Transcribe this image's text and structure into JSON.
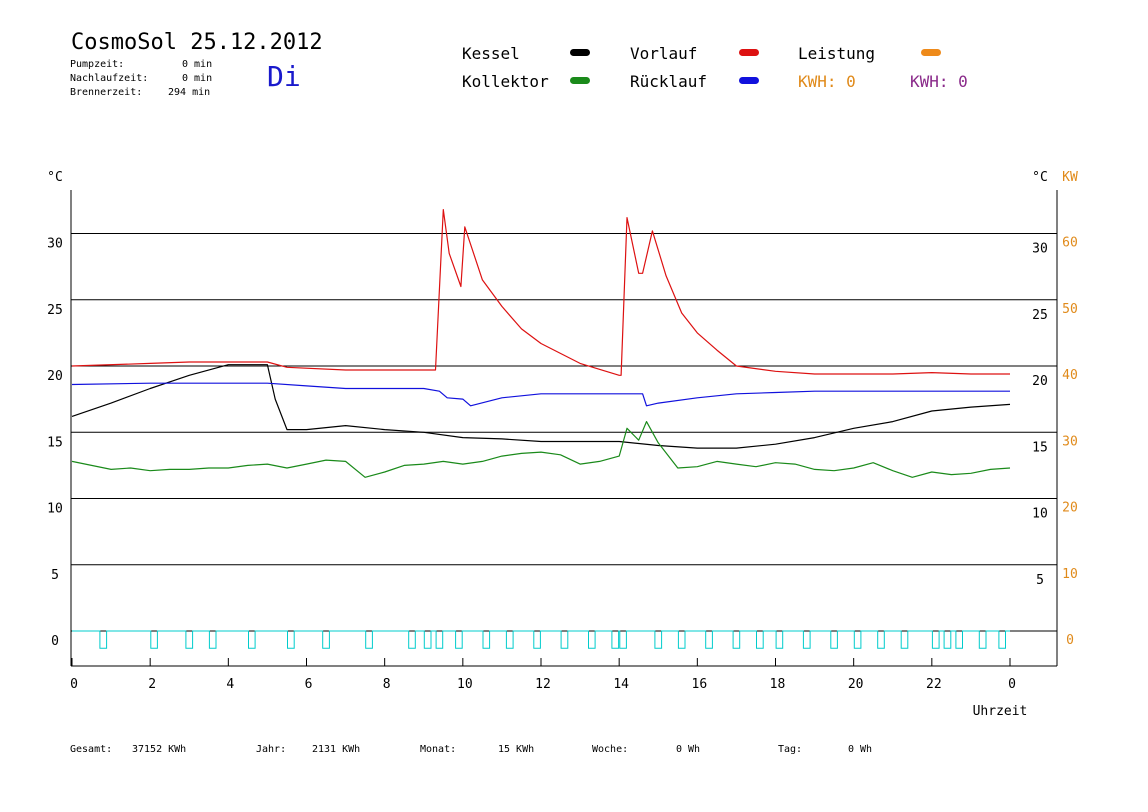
{
  "header": {
    "title": "CosmoSol 25.12.2012",
    "weekday": "Di",
    "stats": [
      {
        "label": "Pumpzeit:",
        "value": "0 min"
      },
      {
        "label": "Nachlaufzeit:",
        "value": "0 min"
      },
      {
        "label": "Brennerzeit:",
        "value": "294 min"
      }
    ]
  },
  "legend": {
    "kessel": {
      "label": "Kessel",
      "color": "#000000"
    },
    "kollektor": {
      "label": "Kollektor",
      "color": "#1a8a1a"
    },
    "vorlauf": {
      "label": "Vorlauf",
      "color": "#dd1111"
    },
    "ruecklauf": {
      "label": "Rücklauf",
      "color": "#1111dd"
    },
    "leistung": {
      "label": "Leistung",
      "color": "#ee8a1a"
    },
    "kwh_orange": "KWH: 0",
    "kwh_purple": "KWH: 0",
    "kwh_orange_color": "#e08a1a",
    "kwh_purple_color": "#8a2a8a"
  },
  "footer": [
    {
      "label": "Gesamt:",
      "value": "37152 KWh"
    },
    {
      "label": "Jahr:",
      "value": "2131 KWh"
    },
    {
      "label": "Monat:",
      "value": "15 KWh"
    },
    {
      "label": "Woche:",
      "value": "0 Wh"
    },
    {
      "label": "Tag:",
      "value": "0 Wh"
    }
  ],
  "chart_data": {
    "type": "line",
    "xlabel": "Uhrzeit",
    "xlim": [
      0,
      24
    ],
    "x_tick_labels": [
      "0",
      "2",
      "4",
      "6",
      "8",
      "10",
      "12",
      "14",
      "16",
      "18",
      "20",
      "22",
      "0"
    ],
    "y_left": {
      "unit": "°C",
      "lim": [
        -2,
        33
      ],
      "ticks": [
        0,
        5,
        10,
        15,
        20,
        25,
        30
      ]
    },
    "y_right": {
      "unit": "°C",
      "ticks": [
        5,
        10,
        15,
        20,
        25,
        30
      ]
    },
    "y_right2": {
      "unit": "KW",
      "color": "#e08a1a",
      "ticks": [
        0,
        10,
        20,
        30,
        40,
        50,
        60
      ]
    },
    "grid": true,
    "series": [
      {
        "name": "Kessel",
        "color": "#000000",
        "x": [
          0,
          1,
          2,
          3,
          4,
          5,
          5.2,
          5.5,
          6,
          7,
          8,
          9,
          10,
          11,
          12,
          13,
          14,
          15,
          16,
          17,
          18,
          19,
          20,
          21,
          22,
          23,
          24
        ],
        "y": [
          16.2,
          17.2,
          18.3,
          19.3,
          20.1,
          20.1,
          17.5,
          15.2,
          15.2,
          15.5,
          15.2,
          15.0,
          14.6,
          14.5,
          14.3,
          14.3,
          14.3,
          14.0,
          13.8,
          13.8,
          14.1,
          14.6,
          15.3,
          15.8,
          16.6,
          16.9,
          17.1
        ]
      },
      {
        "name": "Vorlauf",
        "color": "#dd1111",
        "x": [
          0,
          2,
          3,
          4,
          5,
          5.5,
          7,
          8,
          9.3,
          9.5,
          9.65,
          9.95,
          10.05,
          10.5,
          11,
          11.5,
          12,
          13,
          14,
          14.05,
          14.2,
          14.5,
          14.6,
          14.85,
          15.2,
          15.6,
          16,
          16.5,
          17,
          18,
          19,
          20,
          21,
          22,
          23,
          24
        ],
        "y": [
          20.0,
          20.2,
          20.3,
          20.3,
          20.3,
          19.9,
          19.7,
          19.7,
          19.7,
          31.8,
          28.5,
          26.0,
          30.5,
          26.5,
          24.5,
          22.8,
          21.7,
          20.2,
          19.3,
          19.3,
          31.2,
          27.0,
          27.0,
          30.2,
          26.8,
          24.0,
          22.5,
          21.2,
          20.0,
          19.6,
          19.4,
          19.4,
          19.4,
          19.5,
          19.4,
          19.4
        ]
      },
      {
        "name": "Rücklauf",
        "color": "#1111dd",
        "x": [
          0,
          2,
          4,
          5,
          6,
          7,
          8,
          9,
          9.4,
          9.6,
          10,
          10.2,
          11,
          12,
          13,
          14,
          14.6,
          14.7,
          15,
          16,
          17,
          18,
          19,
          20,
          21,
          22,
          23,
          24
        ],
        "y": [
          18.6,
          18.7,
          18.7,
          18.7,
          18.5,
          18.3,
          18.3,
          18.3,
          18.1,
          17.6,
          17.5,
          17.0,
          17.6,
          17.9,
          17.9,
          17.9,
          17.9,
          17.0,
          17.2,
          17.6,
          17.9,
          18.0,
          18.1,
          18.1,
          18.1,
          18.1,
          18.1,
          18.1
        ]
      },
      {
        "name": "Kollektor",
        "color": "#1a8a1a",
        "x": [
          0,
          0.5,
          1,
          1.5,
          2,
          2.5,
          3,
          3.5,
          4,
          4.5,
          5,
          5.5,
          6,
          6.5,
          7,
          7.5,
          8,
          8.5,
          9,
          9.5,
          10,
          10.5,
          11,
          11.5,
          12,
          12.5,
          13,
          13.5,
          14,
          14.2,
          14.5,
          14.7,
          15,
          15.5,
          16,
          16.5,
          17,
          17.5,
          18,
          18.5,
          19,
          19.5,
          20,
          20.5,
          21,
          21.5,
          22,
          22.5,
          23,
          23.5,
          24
        ],
        "y": [
          12.8,
          12.5,
          12.2,
          12.3,
          12.1,
          12.2,
          12.2,
          12.3,
          12.3,
          12.5,
          12.6,
          12.3,
          12.6,
          12.9,
          12.8,
          11.6,
          12.0,
          12.5,
          12.6,
          12.8,
          12.6,
          12.8,
          13.2,
          13.4,
          13.5,
          13.3,
          12.6,
          12.8,
          13.2,
          15.3,
          14.4,
          15.8,
          14.2,
          12.3,
          12.4,
          12.8,
          12.6,
          12.4,
          12.7,
          12.6,
          12.2,
          12.1,
          12.3,
          12.7,
          12.1,
          11.6,
          12.0,
          11.8,
          11.9,
          12.2,
          12.3
        ]
      },
      {
        "name": "Leistung",
        "color": "#00cccc",
        "baseline_y": 0.0,
        "pulse_x": [
          0.8,
          2.1,
          3.0,
          3.6,
          4.6,
          5.6,
          6.5,
          7.6,
          8.7,
          9.1,
          9.4,
          9.9,
          10.6,
          11.2,
          11.9,
          12.6,
          13.3,
          13.9,
          14.1,
          15.0,
          15.6,
          16.3,
          17.0,
          17.6,
          18.1,
          18.8,
          19.5,
          20.1,
          20.7,
          21.3,
          22.1,
          22.4,
          22.7,
          23.3,
          23.8
        ],
        "pulse_depth": -1.3,
        "pulse_width": 0.17
      }
    ]
  }
}
